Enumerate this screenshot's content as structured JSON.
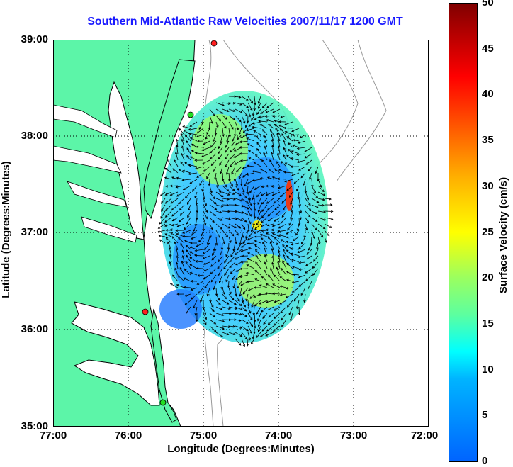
{
  "title": "Southern Mid-Atlantic Raw Velocities 2007/11/17 1200 GMT",
  "axes": {
    "xlabel": "Longitude (Degrees:Minutes)",
    "ylabel": "Latitude (Degrees:Minutes)",
    "x_ticks": [
      "77:00",
      "76:00",
      "75:00",
      "74:00",
      "73:00",
      "72:00"
    ],
    "y_ticks": [
      "39:00",
      "38:00",
      "37:00",
      "36:00",
      "35:00"
    ],
    "x_range_deg_west": [
      77,
      72
    ],
    "y_range_deg_north": [
      35,
      39
    ],
    "grid": "dotted"
  },
  "colorbar": {
    "label": "Surface Velocity (cm/s)",
    "ticks": [
      "50",
      "45",
      "40",
      "35",
      "30",
      "25",
      "20",
      "15",
      "10",
      "5",
      "0"
    ],
    "range": [
      0,
      50
    ],
    "colormap": "jet"
  },
  "colors": {
    "title": "#1a1aff",
    "land": "#5cf5a8",
    "coastline": "#000000",
    "bathymetry": "#999999",
    "station_red": "#ff2020",
    "station_green": "#22dd22"
  },
  "stations": [
    {
      "color": "red",
      "lon": -74.85,
      "lat": 38.96
    },
    {
      "color": "green",
      "lon": -75.17,
      "lat": 38.22
    },
    {
      "color": "red",
      "lon": -75.72,
      "lat": 36.19
    },
    {
      "color": "green",
      "lon": -75.48,
      "lat": 35.25
    }
  ]
}
